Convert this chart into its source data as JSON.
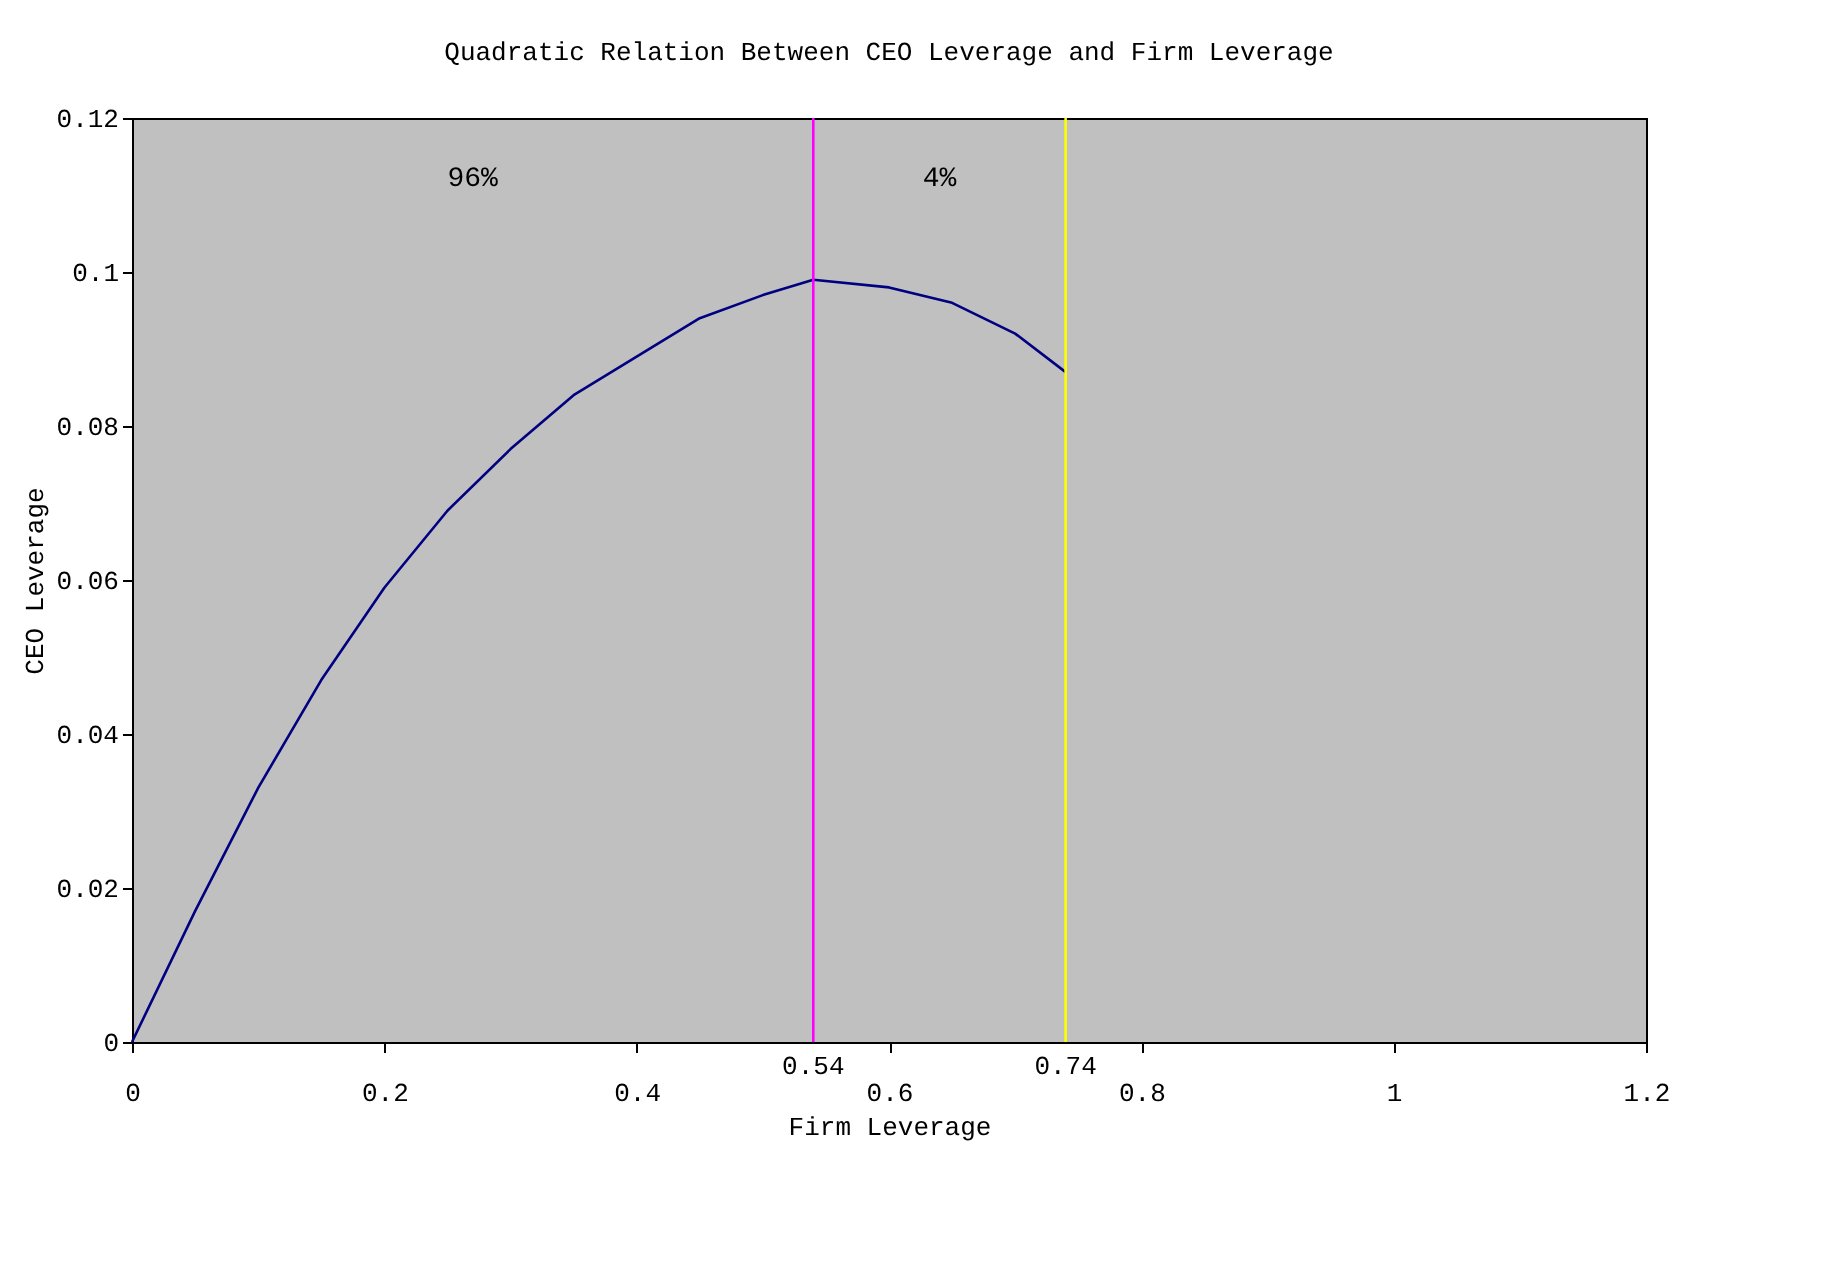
{
  "chart_data": {
    "type": "line",
    "title": "Quadratic Relation Between CEO Leverage and Firm Leverage",
    "xlabel": "Firm Leverage",
    "ylabel": "CEO Leverage",
    "x": [
      0,
      0.05,
      0.1,
      0.15,
      0.2,
      0.25,
      0.3,
      0.35,
      0.4,
      0.45,
      0.5,
      0.54,
      0.6,
      0.65,
      0.7,
      0.74
    ],
    "series": [
      {
        "color": "#000080",
        "values": [
          0,
          0.017,
          0.033,
          0.047,
          0.059,
          0.069,
          0.077,
          0.084,
          0.089,
          0.094,
          0.097,
          0.099,
          0.098,
          0.096,
          0.092,
          0.087
        ]
      }
    ],
    "xlim": [
      0,
      1.2
    ],
    "xticks": [
      0,
      0.2,
      0.4,
      0.6,
      0.8,
      1,
      1.2
    ],
    "ylim": [
      0,
      0.12
    ],
    "yticks": [
      0,
      0.02,
      0.04,
      0.06,
      0.08,
      0.1,
      0.12
    ],
    "ref_lines": [
      {
        "axis": "x",
        "value": 0.54,
        "label": "0.54",
        "color": "#ff00ff"
      },
      {
        "axis": "x",
        "value": 0.74,
        "label": "0.74",
        "color": "#ffff00"
      }
    ],
    "annotations": [
      "96%",
      "4%"
    ],
    "grid": false,
    "marker": "none",
    "line_style": "solid"
  }
}
